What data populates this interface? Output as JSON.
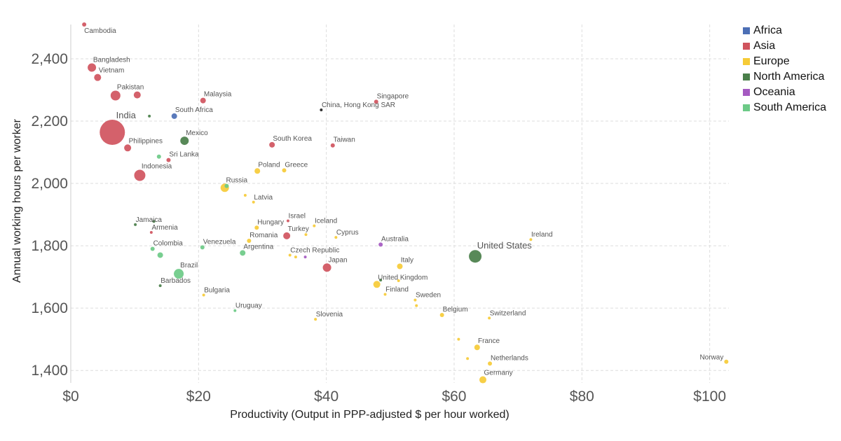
{
  "chart_data": {
    "type": "scatter",
    "title": "",
    "xlabel": "Productivity (Output in PPP-adjusted $ per hour worked)",
    "ylabel": "Annual working hours per worker",
    "xlim": [
      0,
      103
    ],
    "ylim": [
      1360,
      2510
    ],
    "x_ticks": [
      0,
      20,
      40,
      60,
      80,
      100
    ],
    "x_tick_labels": [
      "$0",
      "$20",
      "$40",
      "$60",
      "$80",
      "$100"
    ],
    "y_ticks": [
      1400,
      1600,
      1800,
      2000,
      2200,
      2400
    ],
    "y_tick_labels": [
      "1,400",
      "1,600",
      "1,800",
      "2,000",
      "2,200",
      "2,400"
    ],
    "grid": true,
    "legend_position": "top-right",
    "legend": [
      {
        "name": "Africa",
        "color": "#4C6FB5"
      },
      {
        "name": "Asia",
        "color": "#D0545E"
      },
      {
        "name": "Europe",
        "color": "#F6CB37"
      },
      {
        "name": "North America",
        "color": "#4A7F4A"
      },
      {
        "name": "Oceania",
        "color": "#A55AC1"
      },
      {
        "name": "South America",
        "color": "#6DCA87"
      }
    ],
    "points": [
      {
        "label": "Cambodia",
        "region": "Asia",
        "x": 2.1,
        "y": 2510,
        "size": 3
      },
      {
        "label": "Bangladesh",
        "region": "Asia",
        "x": 3.3,
        "y": 2372,
        "size": 6
      },
      {
        "label": "Vietnam",
        "region": "Asia",
        "x": 4.2,
        "y": 2340,
        "size": 5
      },
      {
        "label": "Pakistan",
        "region": "Asia",
        "x": 7.0,
        "y": 2282,
        "size": 7
      },
      {
        "label": "",
        "region": "Asia",
        "x": 10.4,
        "y": 2284,
        "size": 5
      },
      {
        "label": "Malaysia",
        "region": "Asia",
        "x": 20.7,
        "y": 2266,
        "size": 4
      },
      {
        "label": "South Africa",
        "region": "Africa",
        "x": 16.2,
        "y": 2216,
        "size": 4
      },
      {
        "label": "",
        "region": "North America",
        "x": 12.3,
        "y": 2216,
        "size": 2
      },
      {
        "label": "India",
        "region": "Asia",
        "x": 6.5,
        "y": 2164,
        "size": 18
      },
      {
        "label": "China, Hong Kong SAR",
        "region": "Asia",
        "x": 39.2,
        "y": 2236,
        "size": 2
      },
      {
        "label": "Singapore",
        "region": "Asia",
        "x": 47.8,
        "y": 2262,
        "size": 3
      },
      {
        "label": "Mexico",
        "region": "North America",
        "x": 17.8,
        "y": 2137,
        "size": 6
      },
      {
        "label": "Philippines",
        "region": "Asia",
        "x": 8.9,
        "y": 2114,
        "size": 5
      },
      {
        "label": "South Korea",
        "region": "Asia",
        "x": 31.5,
        "y": 2124,
        "size": 4
      },
      {
        "label": "Taiwan",
        "region": "Asia",
        "x": 41.0,
        "y": 2122,
        "size": 3
      },
      {
        "label": "Sri Lanka",
        "region": "Asia",
        "x": 15.3,
        "y": 2075,
        "size": 3
      },
      {
        "label": "",
        "region": "South America",
        "x": 13.8,
        "y": 2086,
        "size": 3
      },
      {
        "label": "Indonesia",
        "region": "Asia",
        "x": 10.8,
        "y": 2026,
        "size": 8
      },
      {
        "label": "Poland",
        "region": "Europe",
        "x": 29.2,
        "y": 2040,
        "size": 4
      },
      {
        "label": "Greece",
        "region": "Europe",
        "x": 33.4,
        "y": 2042,
        "size": 3
      },
      {
        "label": "Russia",
        "region": "Europe",
        "x": 24.1,
        "y": 1986,
        "size": 6
      },
      {
        "label": "",
        "region": "South America",
        "x": 24.4,
        "y": 1992,
        "size": 3
      },
      {
        "label": "",
        "region": "Europe",
        "x": 27.3,
        "y": 1962,
        "size": 2
      },
      {
        "label": "Latvia",
        "region": "Europe",
        "x": 28.6,
        "y": 1940,
        "size": 2
      },
      {
        "label": "Jamaica",
        "region": "North America",
        "x": 10.1,
        "y": 1868,
        "size": 2
      },
      {
        "label": "",
        "region": "North America",
        "x": 13.0,
        "y": 1878,
        "size": 2
      },
      {
        "label": "Armenia",
        "region": "Asia",
        "x": 12.6,
        "y": 1843,
        "size": 2
      },
      {
        "label": "Israel",
        "region": "Asia",
        "x": 34.0,
        "y": 1880,
        "size": 2
      },
      {
        "label": "Iceland",
        "region": "Europe",
        "x": 38.1,
        "y": 1864,
        "size": 2
      },
      {
        "label": "Hungary",
        "region": "Europe",
        "x": 29.1,
        "y": 1858,
        "size": 3
      },
      {
        "label": "Turkey",
        "region": "Asia",
        "x": 33.8,
        "y": 1832,
        "size": 5
      },
      {
        "label": "",
        "region": "Europe",
        "x": 36.8,
        "y": 1836,
        "size": 2
      },
      {
        "label": "Cyprus",
        "region": "Europe",
        "x": 41.5,
        "y": 1827,
        "size": 2
      },
      {
        "label": "Romania",
        "region": "Europe",
        "x": 27.9,
        "y": 1816,
        "size": 3
      },
      {
        "label": "Australia",
        "region": "Oceania",
        "x": 48.5,
        "y": 1804,
        "size": 3
      },
      {
        "label": "Ireland",
        "region": "Europe",
        "x": 72.0,
        "y": 1820,
        "size": 2
      },
      {
        "label": "Venezuela",
        "region": "South America",
        "x": 20.6,
        "y": 1795,
        "size": 3
      },
      {
        "label": "Colombia",
        "region": "South America",
        "x": 12.8,
        "y": 1790,
        "size": 3
      },
      {
        "label": "Argentina",
        "region": "South America",
        "x": 26.9,
        "y": 1777,
        "size": 4
      },
      {
        "label": "",
        "region": "South America",
        "x": 14.0,
        "y": 1770,
        "size": 4
      },
      {
        "label": "United States",
        "region": "North America",
        "x": 63.3,
        "y": 1766,
        "size": 9
      },
      {
        "label": "Czech Republic",
        "region": "Europe",
        "x": 34.3,
        "y": 1770,
        "size": 2
      },
      {
        "label": "",
        "region": "Europe",
        "x": 35.2,
        "y": 1764,
        "size": 2
      },
      {
        "label": "",
        "region": "Oceania",
        "x": 36.7,
        "y": 1764,
        "size": 2
      },
      {
        "label": "Japan",
        "region": "Asia",
        "x": 40.1,
        "y": 1730,
        "size": 6
      },
      {
        "label": "Italy",
        "region": "Europe",
        "x": 51.5,
        "y": 1734,
        "size": 4
      },
      {
        "label": "Brazil",
        "region": "South America",
        "x": 16.9,
        "y": 1710,
        "size": 7
      },
      {
        "label": "United Kingdom",
        "region": "Europe",
        "x": 47.9,
        "y": 1676,
        "size": 5
      },
      {
        "label": "",
        "region": "North America",
        "x": 48.5,
        "y": 1690,
        "size": 2
      },
      {
        "label": "",
        "region": "Europe",
        "x": 51.3,
        "y": 1688,
        "size": 2
      },
      {
        "label": "Barbados",
        "region": "North America",
        "x": 14.0,
        "y": 1672,
        "size": 2
      },
      {
        "label": "Finland",
        "region": "Europe",
        "x": 49.2,
        "y": 1644,
        "size": 2
      },
      {
        "label": "Bulgaria",
        "region": "Europe",
        "x": 20.8,
        "y": 1642,
        "size": 2
      },
      {
        "label": "Sweden",
        "region": "Europe",
        "x": 53.9,
        "y": 1626,
        "size": 2
      },
      {
        "label": "",
        "region": "Europe",
        "x": 54.1,
        "y": 1608,
        "size": 2
      },
      {
        "label": "Uruguay",
        "region": "South America",
        "x": 25.7,
        "y": 1592,
        "size": 2
      },
      {
        "label": "Belgium",
        "region": "Europe",
        "x": 58.1,
        "y": 1578,
        "size": 3
      },
      {
        "label": "Switzerland",
        "region": "Europe",
        "x": 65.5,
        "y": 1568,
        "size": 2
      },
      {
        "label": "Slovenia",
        "region": "Europe",
        "x": 38.3,
        "y": 1564,
        "size": 2
      },
      {
        "label": "",
        "region": "Europe",
        "x": 60.7,
        "y": 1500,
        "size": 2
      },
      {
        "label": "France",
        "region": "Europe",
        "x": 63.6,
        "y": 1474,
        "size": 4
      },
      {
        "label": "",
        "region": "Europe",
        "x": 62.1,
        "y": 1438,
        "size": 2
      },
      {
        "label": "Netherlands",
        "region": "Europe",
        "x": 65.6,
        "y": 1422,
        "size": 3
      },
      {
        "label": "Norway",
        "region": "Europe",
        "x": 102.6,
        "y": 1428,
        "size": 3
      },
      {
        "label": "Germany",
        "region": "Europe",
        "x": 64.5,
        "y": 1370,
        "size": 5
      }
    ]
  }
}
